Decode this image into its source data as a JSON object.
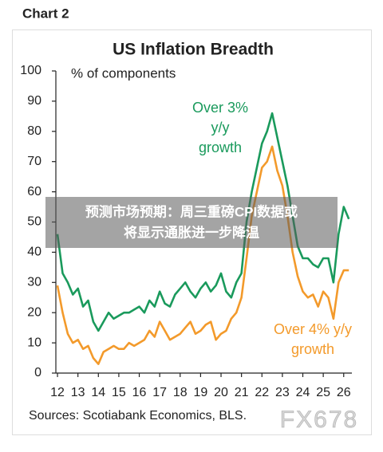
{
  "header": {
    "label": "Chart 2"
  },
  "chart_data": {
    "type": "line",
    "title": "US Inflation Breadth",
    "y_label": "% of components",
    "source": "Sources: Scotiabank Economics, BLS.",
    "xlim": [
      11.92,
      26.4
    ],
    "xticks": [
      12,
      13,
      14,
      15,
      16,
      17,
      18,
      19,
      20,
      21,
      22,
      23,
      24,
      25,
      26
    ],
    "ylim": [
      0,
      100
    ],
    "yticks": [
      0,
      10,
      20,
      30,
      40,
      50,
      60,
      70,
      80,
      90,
      100
    ],
    "x": [
      12.0,
      12.25,
      12.5,
      12.75,
      13.0,
      13.25,
      13.5,
      13.75,
      14.0,
      14.25,
      14.5,
      14.75,
      15.0,
      15.25,
      15.5,
      15.75,
      16.0,
      16.25,
      16.5,
      16.75,
      17.0,
      17.25,
      17.5,
      17.75,
      18.0,
      18.25,
      18.5,
      18.75,
      19.0,
      19.25,
      19.5,
      19.75,
      20.0,
      20.25,
      20.5,
      20.75,
      21.0,
      21.25,
      21.5,
      21.75,
      22.0,
      22.25,
      22.5,
      22.75,
      23.0,
      23.25,
      23.5,
      23.75,
      24.0,
      24.25,
      24.5,
      24.75,
      25.0,
      25.25,
      25.5,
      25.75,
      26.0,
      26.25
    ],
    "series": [
      {
        "name": "Over 3% y/y growth",
        "color": "#1a9a5c",
        "label_lines": [
          "Over 3%",
          "y/y",
          "growth"
        ],
        "values": [
          46,
          33,
          30,
          26,
          28,
          22,
          24,
          17,
          14,
          17,
          20,
          18,
          19,
          20,
          20,
          21,
          22,
          20,
          24,
          22,
          27,
          23,
          22,
          26,
          28,
          30,
          27,
          25,
          28,
          30,
          27,
          29,
          33,
          27,
          25,
          30,
          33,
          50,
          60,
          68,
          76,
          80,
          86,
          78,
          70,
          62,
          52,
          42,
          38,
          38,
          36,
          35,
          38,
          38,
          30,
          46,
          55,
          51
        ]
      },
      {
        "name": "Over 4% y/y growth",
        "color": "#f39a2b",
        "label_lines": [
          "Over 4% y/y",
          "growth"
        ],
        "values": [
          29,
          20,
          13,
          10,
          11,
          8,
          9,
          5,
          3,
          7,
          8,
          9,
          8,
          8,
          10,
          9,
          10,
          11,
          14,
          12,
          17,
          14,
          11,
          12,
          13,
          15,
          17,
          13,
          14,
          16,
          17,
          11,
          13,
          14,
          18,
          20,
          25,
          38,
          52,
          60,
          68,
          70,
          75,
          67,
          62,
          52,
          40,
          32,
          27,
          25,
          26,
          22,
          27,
          25,
          18,
          30,
          34,
          34
        ]
      }
    ]
  },
  "overlay": {
    "headline": [
      "预测市场预期：周三重磅CPI数据或",
      "将显示通胀进一步降温"
    ],
    "watermark": "FX678"
  }
}
